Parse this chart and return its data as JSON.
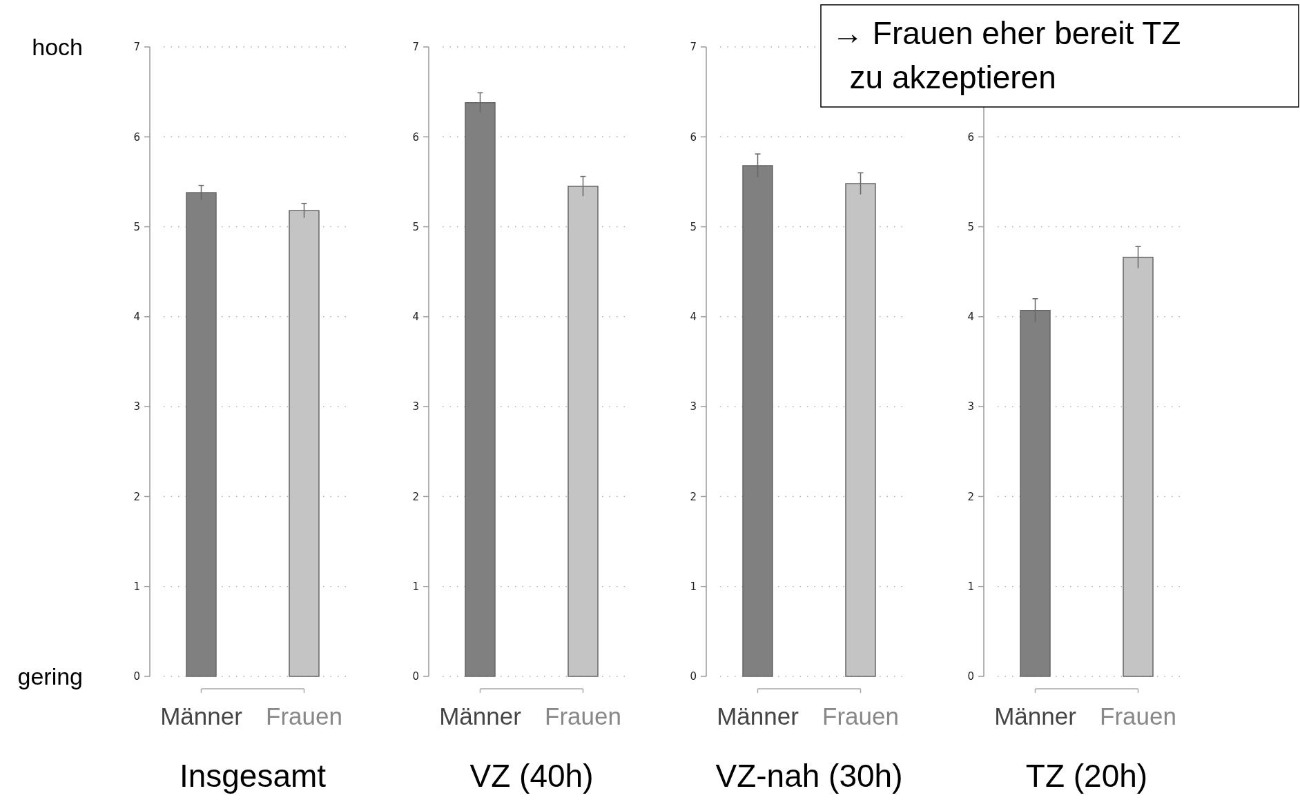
{
  "chart_data": [
    {
      "type": "bar",
      "xlabel": "Insgesamt",
      "categories": [
        "Männer",
        "Frauen"
      ],
      "values": [
        5.38,
        5.18
      ],
      "errors": [
        0.08,
        0.08
      ],
      "colors": [
        "#808080",
        "#c4c4c4"
      ],
      "ylim": [
        0,
        7
      ],
      "yticks": [
        0,
        1,
        2,
        3,
        4,
        5,
        6,
        7
      ],
      "grid": "y",
      "annotations": [
        "hoch",
        "gering"
      ]
    },
    {
      "type": "bar",
      "xlabel": "VZ (40h)",
      "categories": [
        "Männer",
        "Frauen"
      ],
      "values": [
        6.38,
        5.45
      ],
      "errors": [
        0.11,
        0.11
      ],
      "colors": [
        "#808080",
        "#c4c4c4"
      ],
      "ylim": [
        0,
        7
      ],
      "yticks": [
        0,
        1,
        2,
        3,
        4,
        5,
        6,
        7
      ],
      "grid": "y"
    },
    {
      "type": "bar",
      "xlabel": "VZ-nah (30h)",
      "categories": [
        "Männer",
        "Frauen"
      ],
      "values": [
        5.68,
        5.48
      ],
      "errors": [
        0.13,
        0.12
      ],
      "colors": [
        "#808080",
        "#c4c4c4"
      ],
      "ylim": [
        0,
        7
      ],
      "yticks": [
        0,
        1,
        2,
        3,
        4,
        5,
        6,
        7
      ],
      "grid": "y"
    },
    {
      "type": "bar",
      "xlabel": "TZ (20h)",
      "categories": [
        "Männer",
        "Frauen"
      ],
      "values": [
        4.07,
        4.66
      ],
      "errors": [
        0.13,
        0.12
      ],
      "colors": [
        "#808080",
        "#c4c4c4"
      ],
      "ylim": [
        0,
        7
      ],
      "yticks": [
        0,
        1,
        2,
        3,
        4,
        5,
        6
      ],
      "grid": "y",
      "annotations": [
        "→ Frauen eher bereit TZ\n  zu akzeptieren"
      ]
    }
  ]
}
